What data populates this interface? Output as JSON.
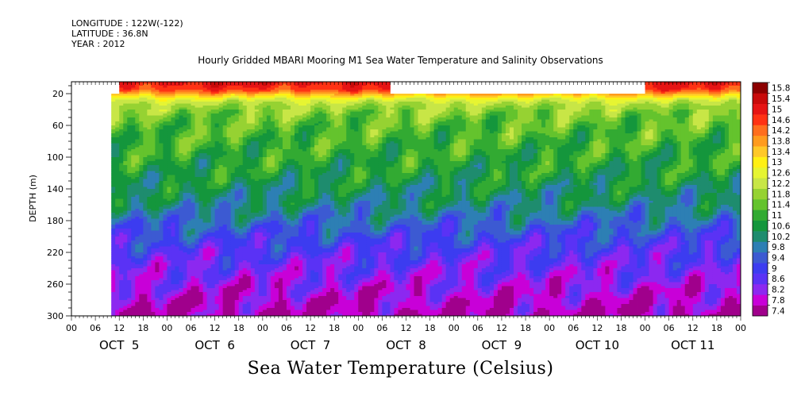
{
  "header": {
    "longitude": "LONGITUDE : 122W(-122)",
    "latitude": "LATITUDE : 36.8N",
    "year": "YEAR : 2012"
  },
  "colors": {
    "palette": [
      "#a0008c",
      "#c800d8",
      "#8c28f0",
      "#5a32f5",
      "#3c3cf0",
      "#3c5ad2",
      "#2d7fb4",
      "#1e8c6e",
      "#14963c",
      "#32aa32",
      "#64c32d",
      "#96d232",
      "#c8e646",
      "#e6f532",
      "#fff014",
      "#ffc828",
      "#ff9b1e",
      "#ff6e1e",
      "#ff3214",
      "#e61414",
      "#c80a0a",
      "#8c0000"
    ]
  },
  "chart_data": {
    "type": "heatmap",
    "title": "Hourly Gridded MBARI Mooring M1 Sea Water Temperature and Salinity Observations",
    "bottom_title": "Sea Water Temperature (Celsius)",
    "ylabel": "DEPTH (m)",
    "yticks": [
      "20",
      "60",
      "100",
      "140",
      "180",
      "220",
      "260",
      "300"
    ],
    "ylim": [
      5,
      300
    ],
    "xlim_hours": [
      0,
      168
    ],
    "xtick_hours": [
      "00",
      "06",
      "12",
      "18",
      "00",
      "06",
      "12",
      "18",
      "00",
      "06",
      "12",
      "18",
      "00",
      "06",
      "12",
      "18",
      "00",
      "06",
      "12",
      "18",
      "00",
      "06",
      "12",
      "18",
      "00",
      "06",
      "12",
      "18",
      "00"
    ],
    "xdays": [
      "OCT  5",
      "OCT  6",
      "OCT  7",
      "OCT  8",
      "OCT  9",
      "OCT 10",
      "OCT 11"
    ],
    "colorbar_levels": [
      "7.4",
      "7.8",
      "8.2",
      "8.6",
      "9",
      "9.4",
      "9.8",
      "10.2",
      "10.6",
      "11",
      "11.4",
      "11.8",
      "12.2",
      "12.6",
      "13",
      "13.4",
      "13.8",
      "14.2",
      "14.6",
      "15",
      "15.4",
      "15.8"
    ],
    "temperature_profile": {
      "depths": [
        5,
        15,
        22,
        28,
        35,
        45,
        60,
        80,
        100,
        120,
        140,
        160,
        180,
        200,
        220,
        240,
        260,
        280,
        300
      ],
      "temps": [
        15.2,
        14.8,
        13.6,
        12.6,
        12.1,
        11.8,
        11.5,
        11.3,
        11.1,
        10.9,
        10.6,
        10.3,
        9.8,
        9.3,
        8.9,
        8.6,
        8.3,
        8.0,
        7.8
      ]
    },
    "data_gaps": [
      {
        "from_hour": 0,
        "to_hour": 10,
        "depth_from": 5,
        "depth_to": 300
      },
      {
        "from_hour": 10,
        "to_hour": 12,
        "depth_from": 5,
        "depth_to": 20
      },
      {
        "from_hour": 80,
        "to_hour": 144,
        "depth_from": 5,
        "depth_to": 20
      }
    ]
  }
}
